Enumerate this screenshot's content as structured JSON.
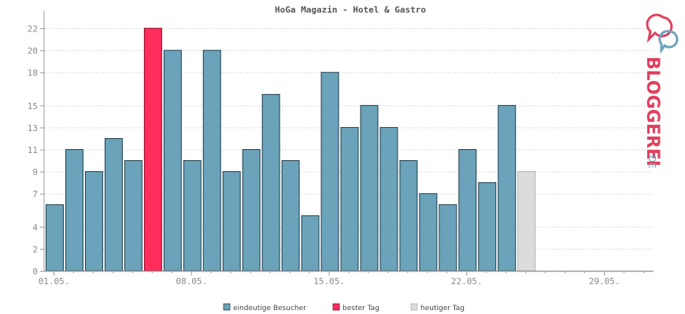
{
  "chart_data": {
    "type": "bar",
    "title": "HoGa Magazin - Hotel & Gastro",
    "xlabel": "",
    "ylabel": "",
    "ylim": [
      0,
      23
    ],
    "yticks": [
      0,
      2,
      4,
      7,
      9,
      11,
      13,
      15,
      18,
      20,
      22
    ],
    "xtick_labels": [
      "01.05.",
      "08.05.",
      "15.05.",
      "22.05.",
      "29.05."
    ],
    "days": 31,
    "values": [
      6,
      11,
      9,
      12,
      10,
      22,
      20,
      10,
      20,
      9,
      11,
      16,
      10,
      5,
      18,
      13,
      15,
      13,
      10,
      7,
      6,
      11,
      8,
      15,
      9
    ],
    "best_day_index": 5,
    "today_index": 24,
    "grid": true,
    "legend_position": "bottom",
    "colors": {
      "visitors": "#6aa3ba",
      "best": "#ff2c5c",
      "today": "#dcdcdc",
      "bar_stroke_visitors": "#1e3b4a",
      "bar_stroke_best": "#8b0020",
      "bar_stroke_today": "#b0b0b0",
      "grid": "#c8c8c8",
      "axis": "#999999"
    }
  },
  "legend": [
    {
      "label": "eindeutige Besucher",
      "color": "#6aa3ba"
    },
    {
      "label": "bester Tag",
      "color": "#ff2c5c"
    },
    {
      "label": "heutiger Tag",
      "color": "#dcdcdc"
    }
  ],
  "logo": {
    "text": "BLOGGEREI",
    "suffix": ".DE",
    "color": "#e0405e",
    "suffix_color": "#6aa3ba"
  }
}
